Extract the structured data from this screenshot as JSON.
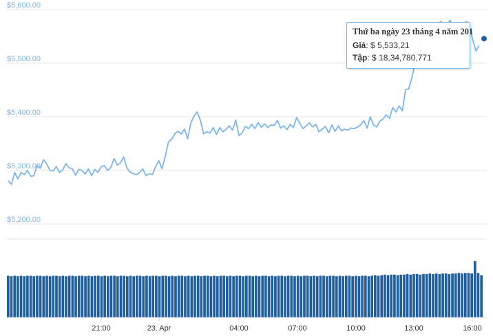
{
  "tooltip": {
    "title": "Thứ ba ngày 23 tháng 4 năm 201",
    "price_label": "Giá",
    "price_value": "$ 5,533,21",
    "volume_label": "Tập",
    "volume_value": "$ 18,34,780,771"
  },
  "colors": {
    "line": "#7cb5ec",
    "bars": "#1f5fa0",
    "grid": "#e6e6e6",
    "axis_label": "#7cb5ec",
    "tooltip_border": "#7cb5ec"
  },
  "chart_data": [
    {
      "type": "line",
      "y_tick_labels": [
        "$5,600.00",
        "$5,500.00",
        "$5,400.00",
        "$5,300.00",
        "$5,200.00"
      ],
      "ylim": [
        5200,
        5600
      ],
      "grid": true,
      "points": [
        [
          0,
          5281
        ],
        [
          1,
          5274
        ],
        [
          2,
          5296
        ],
        [
          3,
          5284
        ],
        [
          4,
          5296
        ],
        [
          5,
          5292
        ],
        [
          6,
          5300
        ],
        [
          7,
          5289
        ],
        [
          8,
          5290
        ],
        [
          9,
          5310
        ],
        [
          10,
          5304
        ],
        [
          11,
          5320
        ],
        [
          12,
          5312
        ],
        [
          13,
          5300
        ],
        [
          14,
          5299
        ],
        [
          15,
          5307
        ],
        [
          16,
          5296
        ],
        [
          17,
          5301
        ],
        [
          18,
          5313
        ],
        [
          19,
          5305
        ],
        [
          20,
          5303
        ],
        [
          21,
          5291
        ],
        [
          22,
          5302
        ],
        [
          23,
          5300
        ],
        [
          24,
          5293
        ],
        [
          25,
          5303
        ],
        [
          26,
          5290
        ],
        [
          27,
          5302
        ],
        [
          28,
          5296
        ],
        [
          29,
          5307
        ],
        [
          30,
          5309
        ],
        [
          31,
          5300
        ],
        [
          32,
          5305
        ],
        [
          33,
          5322
        ],
        [
          34,
          5310
        ],
        [
          35,
          5314
        ],
        [
          36,
          5325
        ],
        [
          37,
          5305
        ],
        [
          38,
          5297
        ],
        [
          39,
          5294
        ],
        [
          40,
          5292
        ],
        [
          41,
          5296
        ],
        [
          42,
          5303
        ],
        [
          43,
          5290
        ],
        [
          44,
          5294
        ],
        [
          45,
          5292
        ],
        [
          46,
          5307
        ],
        [
          47,
          5318
        ],
        [
          48,
          5303
        ],
        [
          49,
          5326
        ],
        [
          50,
          5353
        ],
        [
          51,
          5358
        ],
        [
          52,
          5369
        ],
        [
          53,
          5373
        ],
        [
          54,
          5368
        ],
        [
          55,
          5377
        ],
        [
          56,
          5359
        ],
        [
          57,
          5389
        ],
        [
          58,
          5402
        ],
        [
          59,
          5409
        ],
        [
          60,
          5393
        ],
        [
          61,
          5368
        ],
        [
          62,
          5372
        ],
        [
          63,
          5370
        ],
        [
          64,
          5380
        ],
        [
          65,
          5367
        ],
        [
          66,
          5380
        ],
        [
          67,
          5372
        ],
        [
          68,
          5377
        ],
        [
          69,
          5383
        ],
        [
          70,
          5375
        ],
        [
          71,
          5394
        ],
        [
          72,
          5365
        ],
        [
          73,
          5370
        ],
        [
          74,
          5382
        ],
        [
          75,
          5378
        ],
        [
          76,
          5386
        ],
        [
          77,
          5378
        ],
        [
          78,
          5389
        ],
        [
          79,
          5380
        ],
        [
          80,
          5387
        ],
        [
          81,
          5380
        ],
        [
          82,
          5385
        ],
        [
          83,
          5384
        ],
        [
          84,
          5393
        ],
        [
          85,
          5379
        ],
        [
          86,
          5383
        ],
        [
          87,
          5376
        ],
        [
          88,
          5386
        ],
        [
          89,
          5380
        ],
        [
          90,
          5399
        ],
        [
          91,
          5388
        ],
        [
          92,
          5378
        ],
        [
          93,
          5383
        ],
        [
          94,
          5389
        ],
        [
          95,
          5381
        ],
        [
          96,
          5386
        ],
        [
          97,
          5372
        ],
        [
          98,
          5377
        ],
        [
          99,
          5382
        ],
        [
          100,
          5370
        ],
        [
          101,
          5385
        ],
        [
          102,
          5373
        ],
        [
          103,
          5383
        ],
        [
          104,
          5374
        ],
        [
          105,
          5377
        ],
        [
          106,
          5375
        ],
        [
          107,
          5379
        ],
        [
          108,
          5378
        ],
        [
          109,
          5381
        ],
        [
          110,
          5385
        ],
        [
          111,
          5393
        ],
        [
          112,
          5379
        ],
        [
          113,
          5400
        ],
        [
          114,
          5385
        ],
        [
          115,
          5381
        ],
        [
          116,
          5392
        ],
        [
          117,
          5396
        ],
        [
          118,
          5404
        ],
        [
          119,
          5397
        ],
        [
          120,
          5417
        ],
        [
          121,
          5409
        ],
        [
          122,
          5420
        ],
        [
          123,
          5411
        ],
        [
          124,
          5451
        ],
        [
          125,
          5452
        ],
        [
          126,
          5473
        ],
        [
          127,
          5501
        ],
        [
          128,
          5530
        ],
        [
          129,
          5553
        ],
        [
          130,
          5565
        ],
        [
          131,
          5560
        ],
        [
          132,
          5574
        ],
        [
          133,
          5561
        ],
        [
          134,
          5572
        ],
        [
          135,
          5578
        ],
        [
          136,
          5570
        ],
        [
          137,
          5574
        ],
        [
          138,
          5580
        ],
        [
          139,
          5548
        ],
        [
          140,
          5540
        ],
        [
          141,
          5555
        ],
        [
          142,
          5572
        ],
        [
          143,
          5578
        ],
        [
          144,
          5567
        ],
        [
          145,
          5543
        ],
        [
          146,
          5523
        ],
        [
          147,
          5533
        ]
      ],
      "highlight_index": 147
    },
    {
      "type": "bar",
      "x_tick_labels": [
        "21:00",
        "23. Apr",
        "04:00",
        "07:00",
        "10:00",
        "13:00",
        "16:00"
      ],
      "values": [
        0.74,
        0.73,
        0.74,
        0.73,
        0.74,
        0.73,
        0.74,
        0.74,
        0.73,
        0.74,
        0.74,
        0.73,
        0.74,
        0.73,
        0.74,
        0.74,
        0.73,
        0.74,
        0.73,
        0.74,
        0.74,
        0.73,
        0.74,
        0.74,
        0.73,
        0.74,
        0.73,
        0.74,
        0.74,
        0.73,
        0.74,
        0.73,
        0.74,
        0.74,
        0.73,
        0.74,
        0.74,
        0.73,
        0.74,
        0.73,
        0.74,
        0.74,
        0.73,
        0.74,
        0.73,
        0.74,
        0.74,
        0.73,
        0.74,
        0.74,
        0.73,
        0.74,
        0.73,
        0.74,
        0.74,
        0.73,
        0.74,
        0.73,
        0.74,
        0.74,
        0.73,
        0.74,
        0.74,
        0.73,
        0.74,
        0.73,
        0.74,
        0.74,
        0.73,
        0.74,
        0.73,
        0.74,
        0.74,
        0.73,
        0.74,
        0.74,
        0.73,
        0.74,
        0.73,
        0.74,
        0.74,
        0.73,
        0.74,
        0.73,
        0.74,
        0.74,
        0.73,
        0.74,
        0.74,
        0.73,
        0.74,
        0.73,
        0.74,
        0.74,
        0.73,
        0.74,
        0.73,
        0.74,
        0.74,
        0.73,
        0.74,
        0.74,
        0.73,
        0.74,
        0.73,
        0.74,
        0.74,
        0.73,
        0.74,
        0.73,
        0.74,
        0.74,
        0.73,
        0.74,
        0.75,
        0.74,
        0.75,
        0.76,
        0.75,
        0.76,
        0.76,
        0.75,
        0.76,
        0.76,
        0.77,
        0.76,
        0.77,
        0.77,
        0.76,
        0.77,
        0.77,
        0.78,
        0.77,
        0.78,
        0.77,
        0.78,
        0.78,
        0.77,
        0.78,
        0.78,
        0.79,
        0.78,
        0.79,
        0.79,
        0.78,
        1.0,
        0.79,
        0.75
      ]
    }
  ]
}
